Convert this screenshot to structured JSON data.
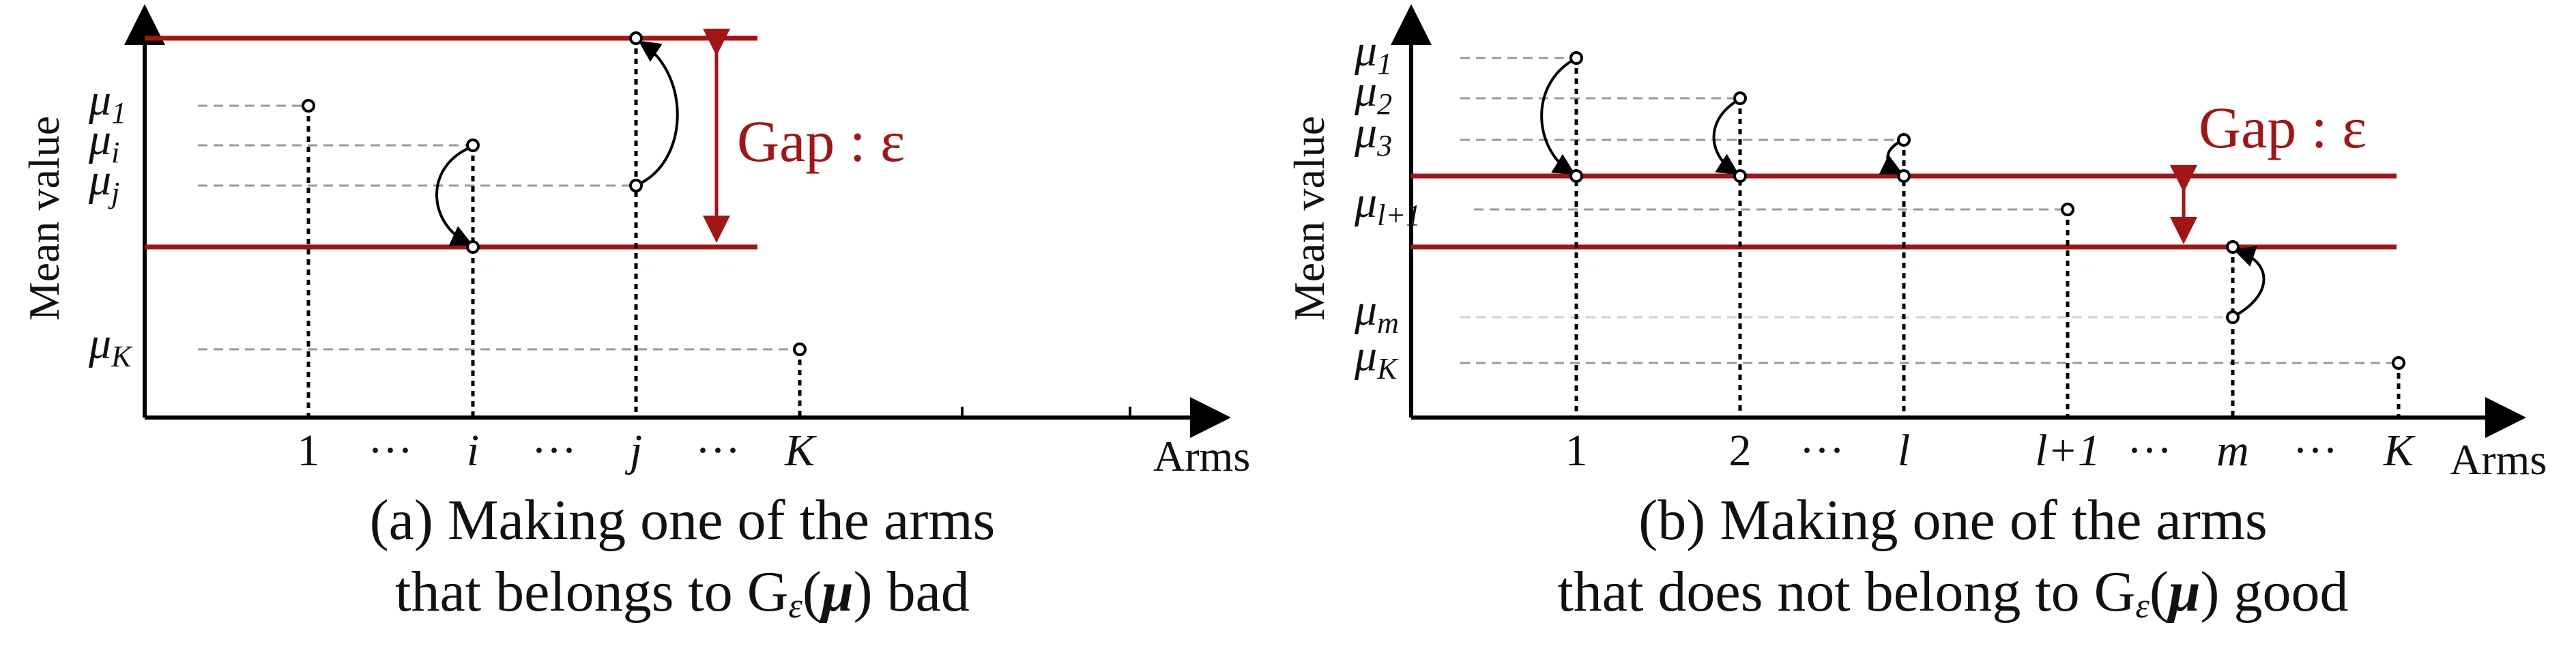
{
  "colors": {
    "gap_line": "#a31515",
    "axis": "#000000",
    "dashed_guide": "#9a9a9a"
  },
  "panel_a": {
    "y_axis_label": "Mean value",
    "x_axis_label": "Arms",
    "gap_label": "Gap : ε",
    "mu_labels": [
      {
        "sym": "μ",
        "sub": "1"
      },
      {
        "sym": "μ",
        "sub": "i"
      },
      {
        "sym": "μ",
        "sub": "j"
      },
      {
        "sym": "μ",
        "sub": "K"
      }
    ],
    "ticks": [
      "1",
      "···",
      "i",
      "···",
      "j",
      "···",
      "K"
    ],
    "caption_line1": "(a) Making one of the arms",
    "caption_line2_pre": "that belongs to G",
    "caption_line2_sub": "ε",
    "caption_line2_paren": "(",
    "caption_line2_mu": "μ",
    "caption_line2_post": ") bad"
  },
  "panel_b": {
    "y_axis_label": "Mean value",
    "x_axis_label": "Arms",
    "gap_label": "Gap : ε",
    "mu_labels": [
      {
        "sym": "μ",
        "sub": "1"
      },
      {
        "sym": "μ",
        "sub": "2"
      },
      {
        "sym": "μ",
        "sub": "3"
      },
      {
        "sym": "μ",
        "sub": "l+1"
      },
      {
        "sym": "μ",
        "sub": "m"
      },
      {
        "sym": "μ",
        "sub": "K"
      }
    ],
    "ticks": [
      "1",
      "2",
      "···",
      "l",
      "l+1",
      "···",
      "m",
      "···",
      "K"
    ],
    "caption_line1": "(b) Making one of the arms",
    "caption_line2_pre": "that does not belong to G",
    "caption_line2_sub": "ε",
    "caption_line2_paren": "(",
    "caption_line2_mu": "μ",
    "caption_line2_post": ") good"
  }
}
